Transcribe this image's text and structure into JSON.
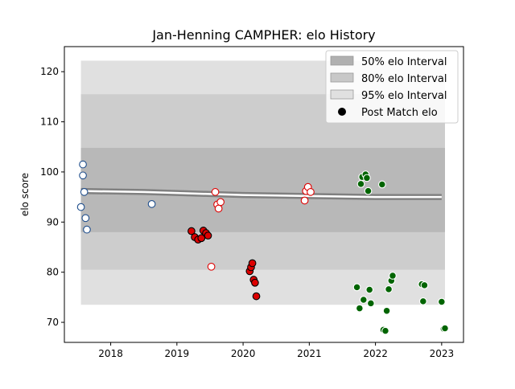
{
  "chart_data": {
    "type": "scatter",
    "title": "Jan-Henning CAMPHER: elo History",
    "xlabel": "",
    "ylabel": "elo score",
    "xlim": [
      2017.3,
      2023.33
    ],
    "ylim": [
      66,
      125
    ],
    "x_ticks": [
      2018,
      2019,
      2020,
      2021,
      2022,
      2023
    ],
    "x_tick_labels": [
      "2018",
      "2019",
      "2020",
      "2021",
      "2022",
      "2023"
    ],
    "y_ticks": [
      70,
      80,
      90,
      100,
      110,
      120
    ],
    "y_tick_labels": [
      "70",
      "80",
      "90",
      "100",
      "110",
      "120"
    ],
    "grid": false,
    "legend_position": "top-right",
    "legend": [
      {
        "label": "50% elo Interval",
        "kind": "patch",
        "color": "#b0b0b0"
      },
      {
        "label": "80% elo Interval",
        "kind": "patch",
        "color": "#c8c8c8"
      },
      {
        "label": "95% elo Interval",
        "kind": "patch",
        "color": "#e0e0e0"
      },
      {
        "label": "Post Match elo",
        "kind": "marker",
        "color": "#000000"
      }
    ],
    "rating_line": {
      "x": [
        2017.55,
        2018.5,
        2019.0,
        2019.5,
        2020.0,
        2020.5,
        2021.0,
        2021.5,
        2022.0,
        2022.5,
        2023.0
      ],
      "mean": [
        96.2,
        96.0,
        95.8,
        95.6,
        95.4,
        95.3,
        95.2,
        95.1,
        95.0,
        95.0,
        95.0
      ],
      "band50": [
        [
          95.6,
          96.8
        ],
        [
          95.4,
          96.6
        ],
        [
          95.2,
          96.4
        ],
        [
          95.0,
          96.2
        ],
        [
          94.8,
          96.0
        ],
        [
          94.7,
          95.9
        ],
        [
          94.6,
          95.8
        ],
        [
          94.5,
          95.7
        ],
        [
          94.4,
          95.6
        ],
        [
          94.4,
          95.6
        ],
        [
          94.4,
          95.6
        ]
      ]
    },
    "intervals": [
      {
        "name": "95% elo Interval",
        "x_start": 2017.55,
        "x_end": 2023.05,
        "lower": 73.5,
        "upper": 122.2
      },
      {
        "name": "80% elo Interval",
        "x_start": 2017.55,
        "x_end": 2023.05,
        "lower": 80.5,
        "upper": 115.5
      },
      {
        "name": "50% elo Interval",
        "x_start": 2017.55,
        "x_end": 2023.05,
        "lower": 88.0,
        "upper": 104.8
      }
    ],
    "series": [
      {
        "name": "",
        "face": "#ffffff",
        "edge": "#1f4e8c",
        "points": [
          [
            2017.55,
            93.0
          ],
          [
            2017.58,
            101.5
          ],
          [
            2017.58,
            99.3
          ],
          [
            2017.6,
            96.0
          ],
          [
            2017.62,
            90.8
          ],
          [
            2017.64,
            88.5
          ],
          [
            2018.62,
            93.6
          ]
        ]
      },
      {
        "name": "",
        "face": "#dd0000",
        "edge": "#000000",
        "points": [
          [
            2019.22,
            88.2
          ],
          [
            2019.27,
            87.0
          ],
          [
            2019.32,
            86.5
          ],
          [
            2019.37,
            86.8
          ],
          [
            2019.4,
            88.3
          ],
          [
            2019.44,
            87.8
          ],
          [
            2019.47,
            87.3
          ],
          [
            2020.1,
            80.2
          ],
          [
            2020.12,
            81.0
          ],
          [
            2020.14,
            81.8
          ],
          [
            2020.16,
            78.5
          ],
          [
            2020.18,
            77.9
          ],
          [
            2020.2,
            75.2
          ]
        ]
      },
      {
        "name": "",
        "face": "#ffffff",
        "edge": "#dd0000",
        "points": [
          [
            2019.52,
            81.1
          ],
          [
            2019.58,
            96.0
          ],
          [
            2019.61,
            93.5
          ],
          [
            2019.63,
            92.7
          ],
          [
            2019.66,
            94.0
          ],
          [
            2020.93,
            94.3
          ],
          [
            2020.95,
            96.2
          ],
          [
            2020.98,
            97.0
          ],
          [
            2021.02,
            96.0
          ]
        ]
      },
      {
        "name": "",
        "face": "#006400",
        "edge": "#ffffff",
        "points": [
          [
            2021.72,
            77.0
          ],
          [
            2021.76,
            72.8
          ],
          [
            2021.78,
            97.6
          ],
          [
            2021.8,
            99.0
          ],
          [
            2021.82,
            74.5
          ],
          [
            2021.85,
            99.5
          ],
          [
            2021.87,
            98.8
          ],
          [
            2021.89,
            96.2
          ],
          [
            2021.91,
            76.5
          ],
          [
            2021.93,
            73.8
          ],
          [
            2022.1,
            97.5
          ],
          [
            2022.12,
            68.5
          ],
          [
            2022.15,
            68.3
          ],
          [
            2022.17,
            72.3
          ],
          [
            2022.2,
            76.6
          ],
          [
            2022.24,
            78.3
          ],
          [
            2022.26,
            79.3
          ],
          [
            2022.7,
            77.6
          ],
          [
            2022.72,
            74.2
          ],
          [
            2022.74,
            77.4
          ],
          [
            2023.0,
            74.1
          ],
          [
            2023.03,
            68.7
          ],
          [
            2023.05,
            68.8
          ]
        ]
      }
    ]
  }
}
